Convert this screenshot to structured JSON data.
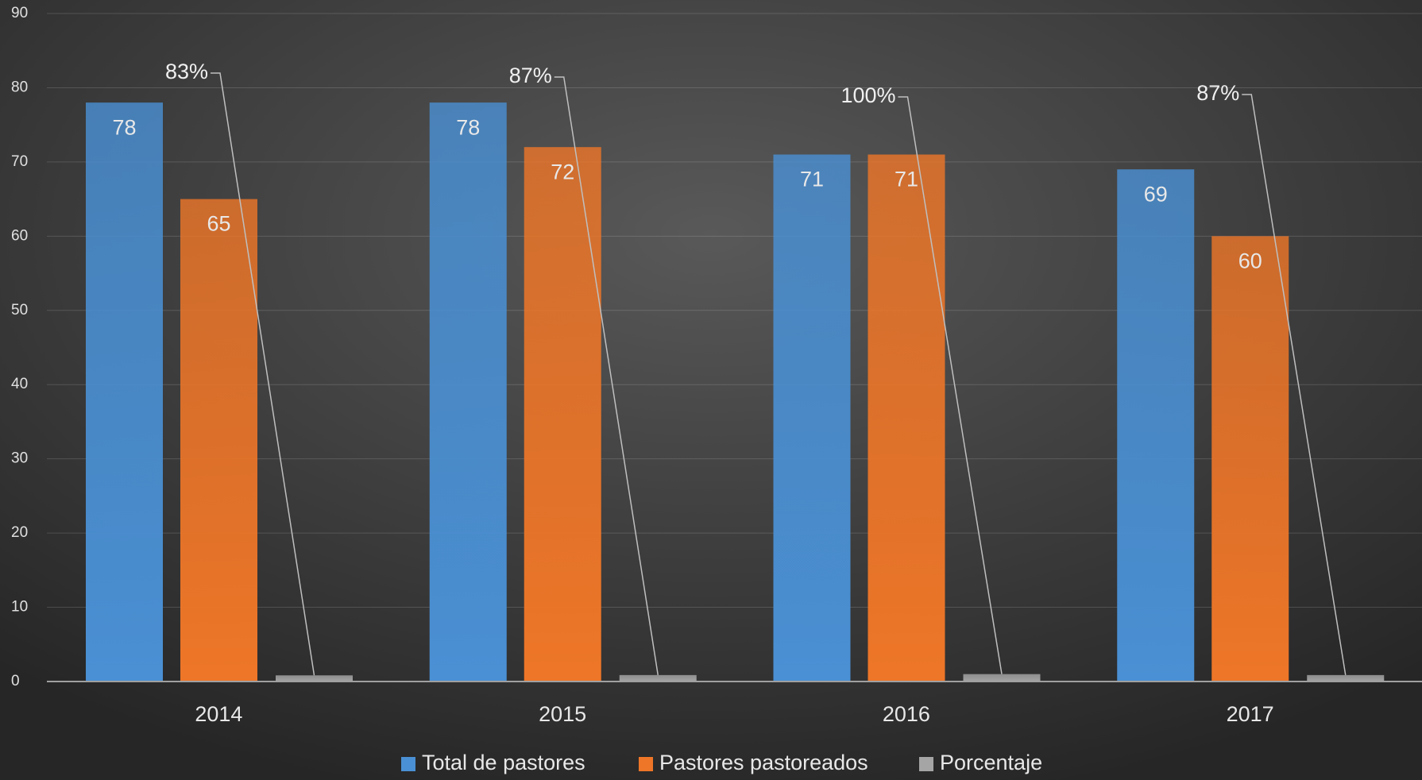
{
  "chart_data": {
    "type": "bar",
    "categories": [
      "2014",
      "2015",
      "2016",
      "2017"
    ],
    "series": [
      {
        "name": "Total de pastores",
        "color": "#4a90d4",
        "values": [
          78,
          78,
          71,
          69
        ]
      },
      {
        "name": "Pastores pastoreados",
        "color": "#ee7628",
        "values": [
          65,
          72,
          71,
          60
        ]
      },
      {
        "name": "Porcentaje",
        "color": "#a5a5a5",
        "values": [
          0.83,
          0.87,
          1.0,
          0.87
        ],
        "value_labels": [
          "83%",
          "87%",
          "100%",
          "87%"
        ]
      }
    ],
    "ylim": [
      0,
      90
    ],
    "yticks": [
      0,
      10,
      20,
      30,
      40,
      50,
      60,
      70,
      80,
      90
    ],
    "grid": true,
    "legend": "bottom"
  }
}
